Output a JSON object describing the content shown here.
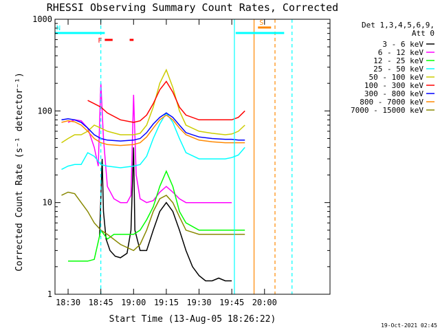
{
  "chart_data": {
    "type": "line",
    "title": "RHESSI Observing Summary Count Rates, Corrected",
    "xlabel": "Start Time (13-Aug-05 18:26:22)",
    "ylabel": "Corrected Count Rate (s⁻¹ detector⁻¹)",
    "y_scale": "log",
    "ylim": [
      1,
      1000
    ],
    "y_ticks": [
      "1",
      "10",
      "100",
      "1000"
    ],
    "xlim_minutes": [
      18.4,
      20.5
    ],
    "x_ticks": [
      {
        "label": "18:30",
        "t": 18.5
      },
      {
        "label": "18:45",
        "t": 18.75
      },
      {
        "label": "19:00",
        "t": 19.0
      },
      {
        "label": "19:15",
        "t": 19.25
      },
      {
        "label": "19:30",
        "t": 19.5
      },
      {
        "label": "19:45",
        "t": 19.75
      },
      {
        "label": "20:00",
        "t": 20.0
      }
    ],
    "legend": {
      "placement": "right",
      "header": [
        "Det 1,3,4,5,6,9,",
        "Att 0"
      ]
    },
    "series": [
      {
        "name": "3 - 6 keV",
        "color": "#000000",
        "points": [
          [
            18.74,
            4.2
          ],
          [
            18.76,
            30
          ],
          [
            18.77,
            8
          ],
          [
            18.79,
            4
          ],
          [
            18.82,
            3
          ],
          [
            18.86,
            2.6
          ],
          [
            18.9,
            2.5
          ],
          [
            18.95,
            2.8
          ],
          [
            18.98,
            5
          ],
          [
            19.0,
            40
          ],
          [
            19.01,
            5
          ],
          [
            19.05,
            3
          ],
          [
            19.1,
            3
          ],
          [
            19.15,
            5
          ],
          [
            19.2,
            8
          ],
          [
            19.25,
            10
          ],
          [
            19.3,
            8
          ],
          [
            19.35,
            5
          ],
          [
            19.4,
            3
          ],
          [
            19.45,
            2
          ],
          [
            19.5,
            1.6
          ],
          [
            19.55,
            1.4
          ],
          [
            19.6,
            1.4
          ],
          [
            19.65,
            1.5
          ],
          [
            19.7,
            1.4
          ],
          [
            19.75,
            1.4
          ]
        ]
      },
      {
        "name": "6 - 12 keV",
        "color": "#ff00ff",
        "points": [
          [
            18.5,
            75
          ],
          [
            18.55,
            80
          ],
          [
            18.6,
            78
          ],
          [
            18.65,
            65
          ],
          [
            18.7,
            40
          ],
          [
            18.73,
            25
          ],
          [
            18.75,
            200
          ],
          [
            18.77,
            50
          ],
          [
            18.8,
            15
          ],
          [
            18.85,
            11
          ],
          [
            18.9,
            10
          ],
          [
            18.95,
            10
          ],
          [
            18.98,
            12
          ],
          [
            19.0,
            150
          ],
          [
            19.02,
            20
          ],
          [
            19.05,
            11
          ],
          [
            19.1,
            10
          ],
          [
            19.15,
            10.5
          ],
          [
            19.2,
            13
          ],
          [
            19.25,
            15
          ],
          [
            19.3,
            13
          ],
          [
            19.35,
            11
          ],
          [
            19.4,
            10
          ],
          [
            19.5,
            10
          ],
          [
            19.6,
            10
          ],
          [
            19.7,
            10
          ],
          [
            19.75,
            10
          ]
        ]
      },
      {
        "name": "12 - 25 keV",
        "color": "#00ff00",
        "points": [
          [
            18.5,
            2.3
          ],
          [
            18.55,
            2.3
          ],
          [
            18.6,
            2.3
          ],
          [
            18.65,
            2.3
          ],
          [
            18.7,
            2.4
          ],
          [
            18.75,
            5
          ],
          [
            18.8,
            4
          ],
          [
            18.85,
            4.5
          ],
          [
            18.9,
            4.5
          ],
          [
            19.0,
            4.5
          ],
          [
            19.05,
            5
          ],
          [
            19.1,
            6.5
          ],
          [
            19.15,
            9
          ],
          [
            19.2,
            15
          ],
          [
            19.25,
            22
          ],
          [
            19.3,
            15
          ],
          [
            19.35,
            8
          ],
          [
            19.4,
            6
          ],
          [
            19.5,
            5
          ],
          [
            19.6,
            5
          ],
          [
            19.7,
            5
          ],
          [
            19.75,
            5
          ],
          [
            19.85,
            5
          ]
        ]
      },
      {
        "name": "25 - 50 keV",
        "color": "#00ffff",
        "points": [
          [
            18.45,
            23
          ],
          [
            18.5,
            25
          ],
          [
            18.55,
            26
          ],
          [
            18.6,
            26
          ],
          [
            18.65,
            35
          ],
          [
            18.7,
            32
          ],
          [
            18.75,
            26
          ],
          [
            18.8,
            25
          ],
          [
            18.9,
            24
          ],
          [
            19.0,
            25
          ],
          [
            19.05,
            26
          ],
          [
            19.1,
            32
          ],
          [
            19.15,
            50
          ],
          [
            19.2,
            72
          ],
          [
            19.25,
            95
          ],
          [
            19.3,
            75
          ],
          [
            19.35,
            50
          ],
          [
            19.4,
            35
          ],
          [
            19.5,
            30
          ],
          [
            19.6,
            30
          ],
          [
            19.7,
            30
          ],
          [
            19.75,
            31
          ],
          [
            19.8,
            33
          ],
          [
            19.85,
            40
          ]
        ]
      },
      {
        "name": "50 - 100 keV",
        "color": "#cccc00",
        "points": [
          [
            18.45,
            45
          ],
          [
            18.5,
            50
          ],
          [
            18.55,
            55
          ],
          [
            18.6,
            55
          ],
          [
            18.65,
            60
          ],
          [
            18.7,
            70
          ],
          [
            18.75,
            65
          ],
          [
            18.8,
            60
          ],
          [
            18.9,
            55
          ],
          [
            19.0,
            55
          ],
          [
            19.05,
            57
          ],
          [
            19.1,
            70
          ],
          [
            19.15,
            110
          ],
          [
            19.2,
            200
          ],
          [
            19.25,
            280
          ],
          [
            19.3,
            180
          ],
          [
            19.35,
            100
          ],
          [
            19.4,
            70
          ],
          [
            19.5,
            60
          ],
          [
            19.6,
            57
          ],
          [
            19.7,
            55
          ],
          [
            19.75,
            56
          ],
          [
            19.8,
            60
          ],
          [
            19.85,
            70
          ]
        ]
      },
      {
        "name": "100 - 300 keV",
        "color": "#ff0000",
        "points": [
          [
            18.65,
            130
          ],
          [
            18.7,
            120
          ],
          [
            18.75,
            110
          ],
          [
            18.8,
            95
          ],
          [
            18.9,
            80
          ],
          [
            19.0,
            75
          ],
          [
            19.05,
            78
          ],
          [
            19.1,
            90
          ],
          [
            19.15,
            120
          ],
          [
            19.2,
            170
          ],
          [
            19.25,
            210
          ],
          [
            19.3,
            160
          ],
          [
            19.35,
            110
          ],
          [
            19.4,
            90
          ],
          [
            19.5,
            80
          ],
          [
            19.6,
            80
          ],
          [
            19.7,
            80
          ],
          [
            19.75,
            80
          ],
          [
            19.8,
            85
          ],
          [
            19.85,
            100
          ]
        ]
      },
      {
        "name": "300 - 800 keV",
        "color": "#0000ff",
        "points": [
          [
            18.45,
            80
          ],
          [
            18.5,
            82
          ],
          [
            18.55,
            80
          ],
          [
            18.6,
            75
          ],
          [
            18.65,
            65
          ],
          [
            18.7,
            55
          ],
          [
            18.75,
            50
          ],
          [
            18.8,
            48
          ],
          [
            18.9,
            47
          ],
          [
            19.0,
            48
          ],
          [
            19.05,
            50
          ],
          [
            19.1,
            58
          ],
          [
            19.15,
            72
          ],
          [
            19.2,
            85
          ],
          [
            19.25,
            95
          ],
          [
            19.3,
            85
          ],
          [
            19.35,
            70
          ],
          [
            19.4,
            58
          ],
          [
            19.5,
            52
          ],
          [
            19.6,
            50
          ],
          [
            19.7,
            49
          ],
          [
            19.75,
            49
          ],
          [
            19.8,
            48
          ],
          [
            19.85,
            48
          ]
        ]
      },
      {
        "name": "800 - 7000 keV",
        "color": "#ff8800",
        "points": [
          [
            18.45,
            75
          ],
          [
            18.5,
            78
          ],
          [
            18.55,
            76
          ],
          [
            18.6,
            70
          ],
          [
            18.65,
            60
          ],
          [
            18.7,
            50
          ],
          [
            18.75,
            45
          ],
          [
            18.8,
            43
          ],
          [
            18.9,
            42
          ],
          [
            19.0,
            43
          ],
          [
            19.05,
            45
          ],
          [
            19.1,
            52
          ],
          [
            19.15,
            65
          ],
          [
            19.2,
            80
          ],
          [
            19.25,
            90
          ],
          [
            19.3,
            80
          ],
          [
            19.35,
            65
          ],
          [
            19.4,
            55
          ],
          [
            19.5,
            48
          ],
          [
            19.6,
            46
          ],
          [
            19.7,
            45
          ],
          [
            19.75,
            45
          ],
          [
            19.8,
            45
          ],
          [
            19.85,
            45
          ]
        ]
      },
      {
        "name": "7000 - 15000 keV",
        "color": "#888800",
        "points": [
          [
            18.45,
            12
          ],
          [
            18.5,
            13
          ],
          [
            18.55,
            12.5
          ],
          [
            18.6,
            10
          ],
          [
            18.65,
            8
          ],
          [
            18.7,
            6
          ],
          [
            18.75,
            5
          ],
          [
            18.8,
            4.5
          ],
          [
            18.9,
            3.5
          ],
          [
            19.0,
            3
          ],
          [
            19.05,
            3.5
          ],
          [
            19.1,
            5
          ],
          [
            19.15,
            8
          ],
          [
            19.2,
            11
          ],
          [
            19.25,
            12
          ],
          [
            19.3,
            10
          ],
          [
            19.35,
            7
          ],
          [
            19.4,
            5
          ],
          [
            19.5,
            4.5
          ],
          [
            19.6,
            4.5
          ],
          [
            19.7,
            4.5
          ],
          [
            19.75,
            4.5
          ],
          [
            19.8,
            4.5
          ],
          [
            19.85,
            4.5
          ]
        ]
      }
    ],
    "annotations": {
      "flags": [
        {
          "label": "N",
          "color": "#00ffff",
          "t_start": 18.4,
          "t_end": 18.78
        },
        {
          "label": "F",
          "color": "#ff0000",
          "t_start": 18.78,
          "t_end": 18.84
        },
        {
          "label": "",
          "color": "#ff0000",
          "t_start": 18.97,
          "t_end": 19.0
        },
        {
          "label": "",
          "color": "#00ffff",
          "t_start": 19.78,
          "t_end": 20.15
        },
        {
          "label": "S",
          "color": "#ff8800",
          "t_start": 19.95,
          "t_end": 20.05
        }
      ],
      "vlines": [
        {
          "t": 18.75,
          "color": "#00ffff",
          "style": "dashed"
        },
        {
          "t": 19.77,
          "color": "#00ffff",
          "style": "solid"
        },
        {
          "t": 19.92,
          "color": "#ff8800",
          "style": "solid"
        },
        {
          "t": 20.08,
          "color": "#ff8800",
          "style": "dashed"
        },
        {
          "t": 20.21,
          "color": "#00ffff",
          "style": "dashed"
        }
      ]
    },
    "footer_timestamp": "19-Oct-2021 02:45"
  }
}
